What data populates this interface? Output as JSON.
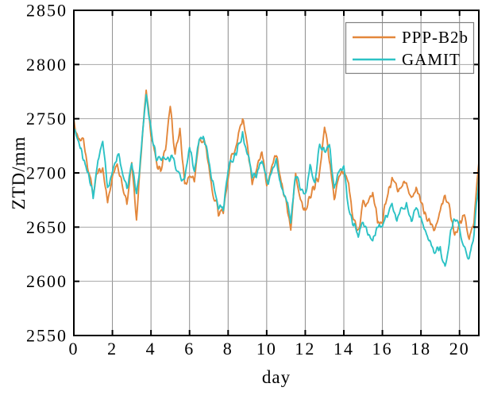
{
  "chart_data": {
    "type": "line",
    "title": "",
    "xlabel": "day",
    "ylabel": "ZTD/mm",
    "xlim": [
      0,
      21
    ],
    "ylim": [
      2550,
      2850
    ],
    "xticks": [
      0,
      2,
      4,
      6,
      8,
      10,
      12,
      14,
      16,
      18,
      20
    ],
    "yticks": [
      2550,
      2600,
      2650,
      2700,
      2750,
      2800,
      2850
    ],
    "grid": true,
    "legend_position": "top-right",
    "x_start": 0,
    "x_step": 0.25,
    "series": [
      {
        "name": "PPP-B2b",
        "color": "#E3873B",
        "values": [
          2748,
          2732,
          2730,
          2702,
          2684,
          2700,
          2705,
          2672,
          2695,
          2712,
          2690,
          2673,
          2708,
          2660,
          2722,
          2778,
          2738,
          2712,
          2700,
          2722,
          2762,
          2718,
          2742,
          2688,
          2700,
          2695,
          2726,
          2730,
          2706,
          2680,
          2662,
          2665,
          2700,
          2718,
          2730,
          2752,
          2722,
          2692,
          2702,
          2721,
          2690,
          2706,
          2716,
          2690,
          2672,
          2646,
          2700,
          2678,
          2664,
          2680,
          2688,
          2700,
          2746,
          2712,
          2678,
          2698,
          2702,
          2690,
          2655,
          2648,
          2670,
          2668,
          2683,
          2655,
          2658,
          2678,
          2695,
          2685,
          2688,
          2692,
          2675,
          2686,
          2675,
          2662,
          2652,
          2648,
          2665,
          2680,
          2668,
          2642,
          2652,
          2662,
          2638,
          2652,
          2712
        ]
      },
      {
        "name": "GAMIT",
        "color": "#2CC2C5",
        "values": [
          2742,
          2728,
          2712,
          2700,
          2678,
          2712,
          2728,
          2684,
          2700,
          2718,
          2705,
          2683,
          2710,
          2680,
          2718,
          2772,
          2740,
          2715,
          2710,
          2712,
          2715,
          2710,
          2700,
          2692,
          2725,
          2700,
          2735,
          2732,
          2710,
          2690,
          2672,
          2668,
          2705,
          2712,
          2722,
          2735,
          2718,
          2695,
          2698,
          2712,
          2692,
          2700,
          2710,
          2685,
          2678,
          2656,
          2697,
          2688,
          2680,
          2705,
          2690,
          2727,
          2722,
          2726,
          2682,
          2700,
          2706,
          2668,
          2650,
          2642,
          2655,
          2645,
          2635,
          2650,
          2652,
          2660,
          2672,
          2658,
          2668,
          2672,
          2658,
          2668,
          2655,
          2645,
          2635,
          2625,
          2632,
          2612,
          2640,
          2658,
          2648,
          2632,
          2622,
          2645,
          2696
        ]
      }
    ]
  },
  "colors": {
    "background": "#FFFFFF",
    "axis": "#000000",
    "grid_vertical": "#8C8C8C",
    "grid_horizontal": "#A6A6A6",
    "legend_border": "#808080",
    "text": "#000000"
  }
}
